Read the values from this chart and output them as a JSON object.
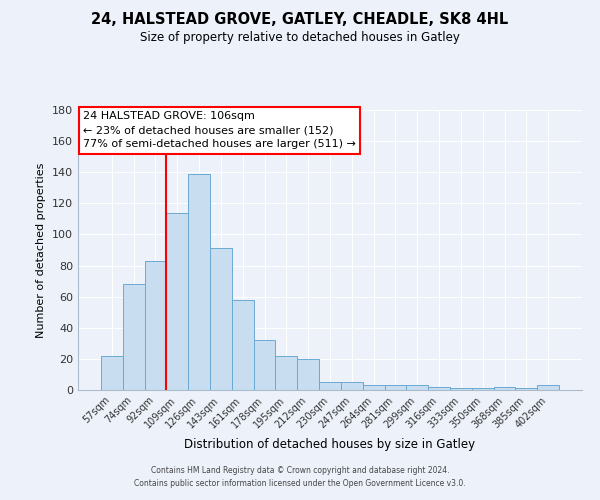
{
  "title": "24, HALSTEAD GROVE, GATLEY, CHEADLE, SK8 4HL",
  "subtitle": "Size of property relative to detached houses in Gatley",
  "xlabel": "Distribution of detached houses by size in Gatley",
  "ylabel": "Number of detached properties",
  "bar_labels": [
    "57sqm",
    "74sqm",
    "92sqm",
    "109sqm",
    "126sqm",
    "143sqm",
    "161sqm",
    "178sqm",
    "195sqm",
    "212sqm",
    "230sqm",
    "247sqm",
    "264sqm",
    "281sqm",
    "299sqm",
    "316sqm",
    "333sqm",
    "350sqm",
    "368sqm",
    "385sqm",
    "402sqm"
  ],
  "bar_heights": [
    22,
    68,
    83,
    114,
    139,
    91,
    58,
    32,
    22,
    20,
    5,
    5,
    3,
    3,
    3,
    2,
    1,
    1,
    2,
    1,
    3
  ],
  "bar_color": "#c9ddf0",
  "bar_edge_color": "#6aaad4",
  "vline_x": 3.0,
  "vline_color": "red",
  "ylim": [
    0,
    180
  ],
  "yticks": [
    0,
    20,
    40,
    60,
    80,
    100,
    120,
    140,
    160,
    180
  ],
  "annotation_title": "24 HALSTEAD GROVE: 106sqm",
  "annotation_line1": "← 23% of detached houses are smaller (152)",
  "annotation_line2": "77% of semi-detached houses are larger (511) →",
  "annotation_box_color": "white",
  "annotation_box_edge_color": "red",
  "footer_line1": "Contains HM Land Registry data © Crown copyright and database right 2024.",
  "footer_line2": "Contains public sector information licensed under the Open Government Licence v3.0.",
  "bg_color": "#edf2fa",
  "grid_color": "white",
  "spine_color": "#aabbcc"
}
